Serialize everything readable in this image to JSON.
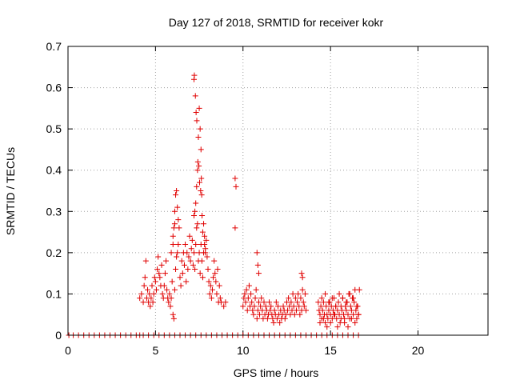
{
  "chart_data": {
    "type": "scatter",
    "title": "Day 127 of 2018, SRMTID for receiver kokr",
    "xlabel": "GPS time / hours",
    "ylabel": "SRMTID / TECUs",
    "xlim": [
      0,
      24
    ],
    "ylim": [
      0,
      0.7
    ],
    "xticks": [
      "0",
      "5",
      "10",
      "15",
      "20"
    ],
    "yticks": [
      "0",
      "0.1",
      "0.2",
      "0.3",
      "0.4",
      "0.5",
      "0.6",
      "0.7"
    ],
    "grid": true,
    "marker": "plus",
    "series": [
      {
        "name": "SRMTID",
        "color": "#e00000",
        "x": [
          0.05,
          0.3,
          0.6,
          0.9,
          1.2,
          1.5,
          1.8,
          2.1,
          2.4,
          2.7,
          3.0,
          3.3,
          3.6,
          3.9,
          4.1,
          4.3,
          4.6,
          4.9,
          5.2,
          5.5,
          5.8,
          6.1,
          6.4,
          6.7,
          7.0,
          7.3,
          7.6,
          7.9,
          8.2,
          8.5,
          8.8,
          9.1,
          9.4,
          9.7,
          10.0,
          10.3,
          10.6,
          10.9,
          11.2,
          11.5,
          11.8,
          12.1,
          12.4,
          12.7,
          13.0,
          13.3,
          13.6,
          13.9,
          14.2,
          14.5,
          14.8,
          15.1,
          15.4,
          15.7,
          16.0,
          16.3,
          16.6,
          4.1,
          4.2,
          4.3,
          4.35,
          4.4,
          4.45,
          4.5,
          4.55,
          4.6,
          4.65,
          4.7,
          4.75,
          4.8,
          4.85,
          4.9,
          4.95,
          5.0,
          5.05,
          5.1,
          5.15,
          5.2,
          5.25,
          5.3,
          5.35,
          5.4,
          5.45,
          5.5,
          5.55,
          5.6,
          5.65,
          5.7,
          5.75,
          5.8,
          5.85,
          5.9,
          5.95,
          6.0,
          6.05,
          6.1,
          6.15,
          6.2,
          6.25,
          6.3,
          6.35,
          6.4,
          6.45,
          6.5,
          6.55,
          6.6,
          6.65,
          6.7,
          6.75,
          6.8,
          6.85,
          6.9,
          6.95,
          7.0,
          7.05,
          7.1,
          7.15,
          7.2,
          7.25,
          7.3,
          7.35,
          7.4,
          7.45,
          7.5,
          7.55,
          7.6,
          7.65,
          7.7,
          7.75,
          7.8,
          7.85,
          7.9,
          7.95,
          8.0,
          8.05,
          8.1,
          8.15,
          8.2,
          8.25,
          8.3,
          8.35,
          8.4,
          8.45,
          8.5,
          8.55,
          8.6,
          8.65,
          8.7,
          8.75,
          8.9,
          9.0,
          7.2,
          7.25,
          7.3,
          7.35,
          7.4,
          7.45,
          7.5,
          7.55,
          7.6,
          7.62,
          7.64,
          7.66,
          7.7,
          7.75,
          7.8,
          7.85,
          7.2,
          7.22,
          7.28,
          7.32,
          7.36,
          7.42,
          7.48,
          7.52,
          7.58,
          6.0,
          6.05,
          6.1,
          6.15,
          6.2,
          6.25,
          6.3,
          5.9,
          6.0,
          6.1,
          9.55,
          9.6,
          9.55,
          10.0,
          10.05,
          10.1,
          10.15,
          10.2,
          10.25,
          10.3,
          10.35,
          10.4,
          10.45,
          10.5,
          10.55,
          10.6,
          10.65,
          10.7,
          10.75,
          10.8,
          10.85,
          10.9,
          10.95,
          11.0,
          11.05,
          11.1,
          11.15,
          11.2,
          11.25,
          11.3,
          11.35,
          11.4,
          11.45,
          11.5,
          11.55,
          11.6,
          11.65,
          11.7,
          11.75,
          11.8,
          11.85,
          11.9,
          11.95,
          12.0,
          12.05,
          12.1,
          12.15,
          12.2,
          12.25,
          12.3,
          12.35,
          12.4,
          12.45,
          12.5,
          12.55,
          12.6,
          12.65,
          12.7,
          12.75,
          12.8,
          12.85,
          12.9,
          12.95,
          13.0,
          13.05,
          13.1,
          13.15,
          13.2,
          13.25,
          13.3,
          13.35,
          13.4,
          13.45,
          13.5,
          13.55,
          13.6,
          10.8,
          10.85,
          10.9,
          13.35,
          13.4,
          14.3,
          14.35,
          14.4,
          14.45,
          14.5,
          14.55,
          14.6,
          14.65,
          14.7,
          14.75,
          14.8,
          14.85,
          14.9,
          14.95,
          15.0,
          15.05,
          15.1,
          15.15,
          15.2,
          15.25,
          15.3,
          15.35,
          15.4,
          15.45,
          15.5,
          15.55,
          15.6,
          15.65,
          15.7,
          15.75,
          15.8,
          15.85,
          15.9,
          15.95,
          16.0,
          16.05,
          16.1,
          16.15,
          16.2,
          16.25,
          16.3,
          16.35,
          16.4,
          16.45,
          16.5,
          16.55,
          16.6,
          16.65,
          14.4,
          14.6,
          14.8,
          15.0,
          15.2,
          15.4,
          15.6,
          15.8,
          16.0,
          16.2,
          16.4,
          16.6,
          14.5,
          14.7,
          14.9,
          15.1,
          15.3,
          15.5,
          15.7,
          15.9,
          16.1,
          16.3,
          16.5
        ],
        "y": [
          0,
          0,
          0,
          0,
          0,
          0,
          0,
          0,
          0,
          0,
          0,
          0,
          0,
          0,
          0,
          0,
          0,
          0,
          0,
          0,
          0,
          0,
          0,
          0,
          0,
          0,
          0,
          0,
          0,
          0,
          0,
          0,
          0,
          0,
          0,
          0,
          0,
          0,
          0,
          0,
          0,
          0,
          0,
          0,
          0,
          0,
          0,
          0,
          0,
          0,
          0,
          0,
          0,
          0,
          0,
          0,
          0,
          0.09,
          0.1,
          0.08,
          0.12,
          0.14,
          0.18,
          0.09,
          0.11,
          0.08,
          0.1,
          0.07,
          0.09,
          0.12,
          0.08,
          0.1,
          0.14,
          0.13,
          0.11,
          0.16,
          0.19,
          0.15,
          0.14,
          0.12,
          0.17,
          0.1,
          0.09,
          0.12,
          0.15,
          0.18,
          0.11,
          0.09,
          0.08,
          0.1,
          0.07,
          0.09,
          0.13,
          0.05,
          0.04,
          0.11,
          0.16,
          0.19,
          0.2,
          0.22,
          0.26,
          0.14,
          0.12,
          0.18,
          0.15,
          0.2,
          0.17,
          0.22,
          0.13,
          0.2,
          0.16,
          0.19,
          0.24,
          0.18,
          0.21,
          0.23,
          0.17,
          0.2,
          0.16,
          0.22,
          0.26,
          0.27,
          0.18,
          0.2,
          0.15,
          0.22,
          0.18,
          0.14,
          0.2,
          0.24,
          0.21,
          0.23,
          0.19,
          0.16,
          0.13,
          0.1,
          0.12,
          0.09,
          0.11,
          0.14,
          0.18,
          0.15,
          0.13,
          0.1,
          0.16,
          0.08,
          0.12,
          0.09,
          0.08,
          0.07,
          0.08,
          0.29,
          0.3,
          0.32,
          0.36,
          0.4,
          0.48,
          0.55,
          0.5,
          0.45,
          0.38,
          0.34,
          0.29,
          0.25,
          0.27,
          0.22,
          0.2,
          0.62,
          0.63,
          0.58,
          0.54,
          0.52,
          0.42,
          0.41,
          0.37,
          0.35,
          0.22,
          0.26,
          0.3,
          0.34,
          0.35,
          0.31,
          0.28,
          0.2,
          0.24,
          0.27,
          0.38,
          0.36,
          0.26,
          0.07,
          0.09,
          0.1,
          0.08,
          0.11,
          0.06,
          0.09,
          0.12,
          0.07,
          0.1,
          0.08,
          0.06,
          0.05,
          0.07,
          0.09,
          0.11,
          0.04,
          0.06,
          0.08,
          0.05,
          0.07,
          0.09,
          0.06,
          0.04,
          0.08,
          0.05,
          0.07,
          0.06,
          0.04,
          0.05,
          0.08,
          0.06,
          0.07,
          0.05,
          0.04,
          0.03,
          0.06,
          0.05,
          0.08,
          0.04,
          0.07,
          0.05,
          0.03,
          0.06,
          0.04,
          0.05,
          0.07,
          0.06,
          0.04,
          0.05,
          0.08,
          0.06,
          0.09,
          0.07,
          0.05,
          0.08,
          0.06,
          0.1,
          0.07,
          0.05,
          0.09,
          0.06,
          0.08,
          0.1,
          0.07,
          0.05,
          0.09,
          0.06,
          0.11,
          0.08,
          0.07,
          0.1,
          0.06,
          0.2,
          0.17,
          0.15,
          0.15,
          0.14,
          0.08,
          0.06,
          0.05,
          0.07,
          0.04,
          0.06,
          0.08,
          0.05,
          0.03,
          0.07,
          0.05,
          0.04,
          0.06,
          0.08,
          0.05,
          0.07,
          0.04,
          0.06,
          0.09,
          0.05,
          0.07,
          0.04,
          0.06,
          0.08,
          0.05,
          0.03,
          0.07,
          0.06,
          0.09,
          0.05,
          0.04,
          0.07,
          0.06,
          0.08,
          0.05,
          0.1,
          0.04,
          0.07,
          0.06,
          0.09,
          0.05,
          0.08,
          0.11,
          0.06,
          0.04,
          0.07,
          0.05,
          0.11,
          0.03,
          0.04,
          0.02,
          0.03,
          0.05,
          0.02,
          0.04,
          0.03,
          0.02,
          0.04,
          0.03,
          0.05,
          0.09,
          0.1,
          0.08,
          0.09,
          0.07,
          0.1,
          0.09,
          0.08,
          0.1,
          0.09,
          0.07
        ]
      }
    ]
  }
}
